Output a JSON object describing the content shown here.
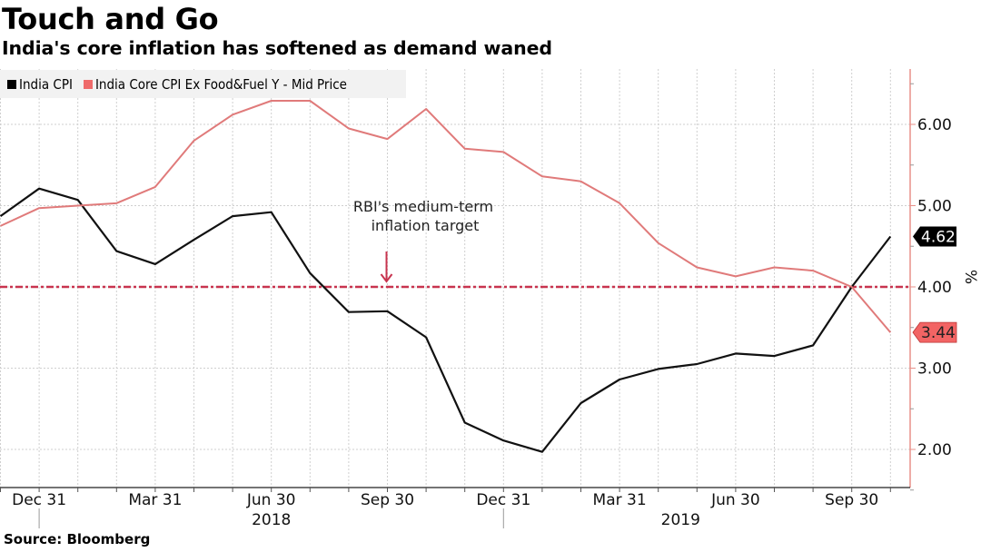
{
  "header": {
    "title": "Touch and Go",
    "subtitle": "India's core inflation has softened as demand waned"
  },
  "legend": [
    {
      "label": "India CPI",
      "color": "#000000"
    },
    {
      "label": "India Core CPI Ex Food&Fuel Y - Mid Price",
      "color": "#ef6b6b"
    }
  ],
  "source": "Source: Bloomberg",
  "colors": {
    "cpi": "#111111",
    "core": "#e07a7a",
    "target": "#c8344f",
    "axis": "#e8908a",
    "grid": "#cfcfcf",
    "legend_bg": "#f2f2f2",
    "core_badge": "#f26464"
  },
  "chart_data": {
    "type": "line",
    "title": "Touch and Go",
    "subtitle": "India's core inflation has softened as demand waned",
    "xlabel": "",
    "ylabel": "%",
    "ylim": [
      1.55,
      6.75
    ],
    "y_ticks": [
      "2.00",
      "3.00",
      "4.00",
      "5.00",
      "6.00"
    ],
    "y_tick_values": [
      2,
      3,
      4,
      5,
      6
    ],
    "y_axis_side": "right",
    "grid": true,
    "legend_position": "top-left",
    "x": [
      "Nov 2017",
      "Dec 2017",
      "Jan 2018",
      "Feb 2018",
      "Mar 2018",
      "Apr 2018",
      "May 2018",
      "Jun 2018",
      "Jul 2018",
      "Aug 2018",
      "Sep 2018",
      "Oct 2018",
      "Nov 2018",
      "Dec 2018",
      "Jan 2019",
      "Feb 2019",
      "Mar 2019",
      "Apr 2019",
      "May 2019",
      "Jun 2019",
      "Jul 2019",
      "Aug 2019",
      "Sep 2019",
      "Oct 2019"
    ],
    "x_ticks": [
      {
        "label": "Dec 31",
        "index": 1
      },
      {
        "label": "Mar 31",
        "index": 4
      },
      {
        "label": "Jun 30",
        "index": 7
      },
      {
        "label": "Sep 30",
        "index": 10
      },
      {
        "label": "Dec 31",
        "index": 13
      },
      {
        "label": "Mar 31",
        "index": 16
      },
      {
        "label": "Jun 30",
        "index": 19
      },
      {
        "label": "Sep 30",
        "index": 22
      }
    ],
    "year_labels": [
      {
        "label": "2018",
        "index": 7
      },
      {
        "label": "2019",
        "index": 18
      }
    ],
    "year_dividers": [
      1,
      13
    ],
    "series": [
      {
        "name": "India CPI",
        "color": "#111111",
        "values": [
          4.87,
          5.21,
          5.07,
          4.44,
          4.28,
          4.58,
          4.87,
          4.92,
          4.17,
          3.69,
          3.7,
          3.38,
          2.33,
          2.11,
          1.97,
          2.57,
          2.86,
          2.99,
          3.05,
          3.18,
          3.15,
          3.28,
          4.0,
          4.62
        ],
        "last_value_label": "4.62"
      },
      {
        "name": "India Core CPI Ex Food&Fuel Y - Mid Price",
        "color": "#e07a7a",
        "values": [
          4.75,
          4.97,
          5.0,
          5.03,
          5.23,
          5.8,
          6.12,
          6.29,
          6.29,
          5.95,
          5.82,
          6.19,
          5.7,
          5.66,
          5.36,
          5.3,
          5.03,
          4.54,
          4.24,
          4.13,
          4.24,
          4.2,
          4.0,
          3.44
        ],
        "last_value_label": "3.44"
      }
    ],
    "reference_line": {
      "value": 4.0,
      "style": "dash-dot",
      "color": "#c8344f"
    },
    "annotations": [
      {
        "text_lines": [
          "RBI's medium-term",
          "inflation target"
        ],
        "arrow_to_index": 10,
        "arrow_to_value": 4.0
      }
    ]
  }
}
